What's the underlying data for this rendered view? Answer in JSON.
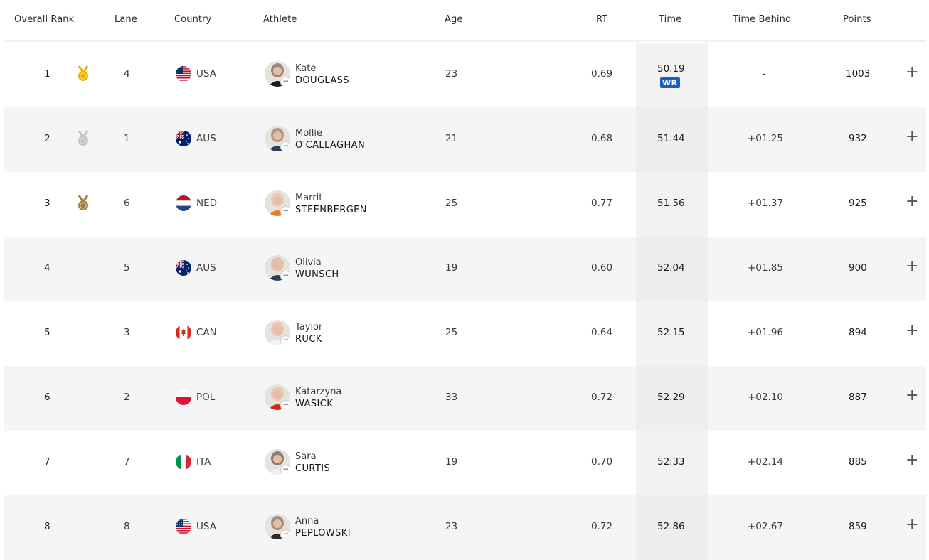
{
  "columns": {
    "overall_rank": "Overall Rank",
    "lane": "Lane",
    "country": "Country",
    "athlete": "Athlete",
    "age": "Age",
    "rt": "RT",
    "time": "Time",
    "time_behind": "Time Behind",
    "points": "Points"
  },
  "rows": [
    {
      "rank": "1",
      "medal": "gold",
      "lane": "4",
      "country": "USA",
      "first": "Kate",
      "last": "DOUGLASS",
      "age": "23",
      "rt": "0.69",
      "time": "50.19",
      "badge": "WR",
      "behind": "-",
      "points": "1003"
    },
    {
      "rank": "2",
      "medal": "silver",
      "lane": "1",
      "country": "AUS",
      "first": "Mollie",
      "last": "O'CALLAGHAN",
      "age": "21",
      "rt": "0.68",
      "time": "51.44",
      "badge": "",
      "behind": "+01.25",
      "points": "932"
    },
    {
      "rank": "3",
      "medal": "bronze",
      "lane": "6",
      "country": "NED",
      "first": "Marrit",
      "last": "STEENBERGEN",
      "age": "25",
      "rt": "0.77",
      "time": "51.56",
      "badge": "",
      "behind": "+01.37",
      "points": "925"
    },
    {
      "rank": "4",
      "medal": "",
      "lane": "5",
      "country": "AUS",
      "first": "Olivia",
      "last": "WUNSCH",
      "age": "19",
      "rt": "0.60",
      "time": "52.04",
      "badge": "",
      "behind": "+01.85",
      "points": "900"
    },
    {
      "rank": "5",
      "medal": "",
      "lane": "3",
      "country": "CAN",
      "first": "Taylor",
      "last": "RUCK",
      "age": "25",
      "rt": "0.64",
      "time": "52.15",
      "badge": "",
      "behind": "+01.96",
      "points": "894"
    },
    {
      "rank": "6",
      "medal": "",
      "lane": "2",
      "country": "POL",
      "first": "Katarzyna",
      "last": "WASICK",
      "age": "33",
      "rt": "0.72",
      "time": "52.29",
      "badge": "",
      "behind": "+02.10",
      "points": "887"
    },
    {
      "rank": "7",
      "medal": "",
      "lane": "7",
      "country": "ITA",
      "first": "Sara",
      "last": "CURTIS",
      "age": "19",
      "rt": "0.70",
      "time": "52.33",
      "badge": "",
      "behind": "+02.14",
      "points": "885"
    },
    {
      "rank": "8",
      "medal": "",
      "lane": "8",
      "country": "USA",
      "first": "Anna",
      "last": "PEPLOWSKI",
      "age": "23",
      "rt": "0.72",
      "time": "52.86",
      "badge": "",
      "behind": "+02.67",
      "points": "859"
    }
  ],
  "icons": {
    "expand": "plus-icon",
    "profile_link": "arrow-right-icon"
  },
  "colors": {
    "gold": "#e8b400",
    "silver": "#c4c4c4",
    "bronze": "#a8814a",
    "wr_badge": "#1f5fb8",
    "alt_row": "#f5f5f5"
  }
}
